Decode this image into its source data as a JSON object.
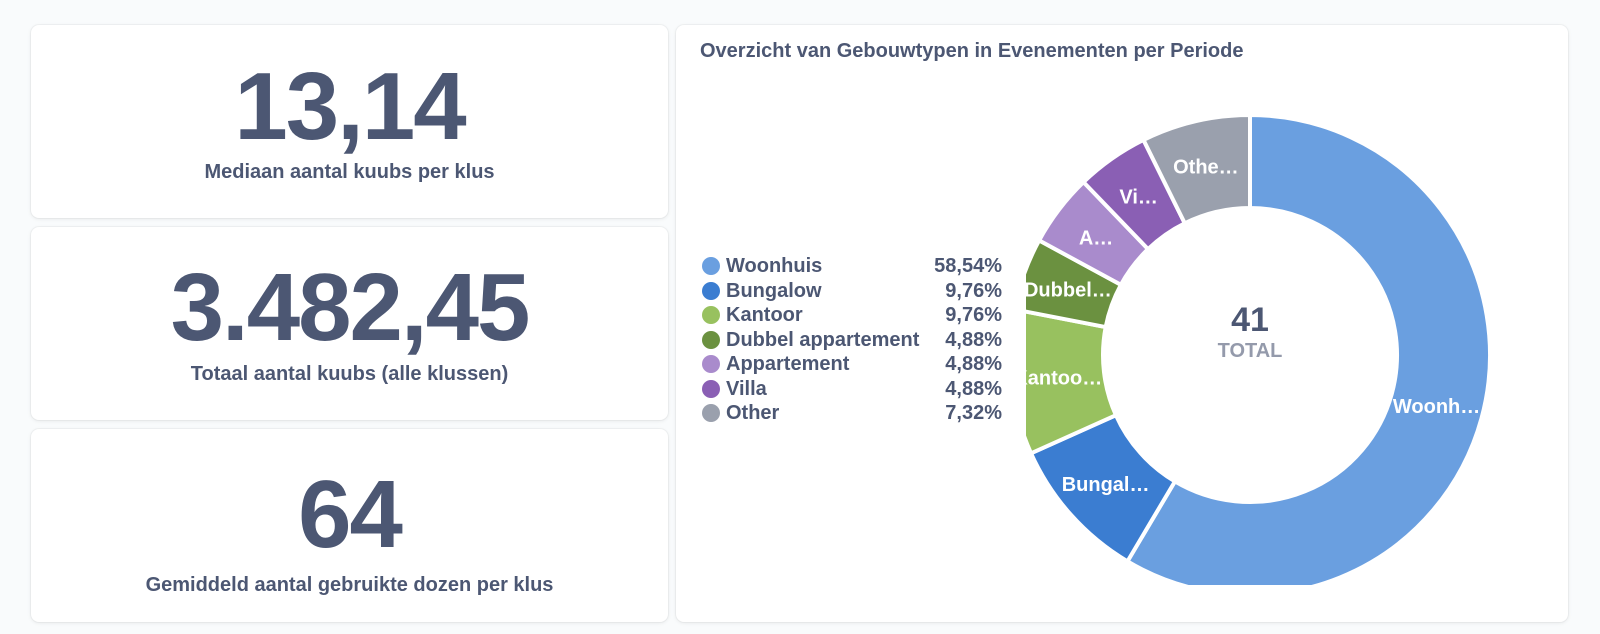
{
  "scalars": [
    {
      "value": "13,14",
      "title": "Mediaan aantal kuubs per klus"
    },
    {
      "value": "3.482,45",
      "title": "Totaal aantal kuubs (alle klussen)"
    },
    {
      "value": "64",
      "title": "Gemiddeld aantal gebruikte dozen per klus"
    }
  ],
  "chart": {
    "title": "Overzicht van Gebouwtypen in Evenementen per Periode",
    "legend": [
      {
        "label": "Woonhuis",
        "pct": "58,54%",
        "color": "#6a9fe0"
      },
      {
        "label": "Bungalow",
        "pct": "9,76%",
        "color": "#3b7dd1"
      },
      {
        "label": "Kantoor",
        "pct": "9,76%",
        "color": "#98c15f"
      },
      {
        "label": "Dubbel appartement",
        "pct": "4,88%",
        "color": "#6b9140"
      },
      {
        "label": "Appartement",
        "pct": "4,88%",
        "color": "#a98bcc"
      },
      {
        "label": "Villa",
        "pct": "4,88%",
        "color": "#8a5fb4"
      },
      {
        "label": "Other",
        "pct": "7,32%",
        "color": "#9aa0ad"
      }
    ],
    "center_value": "41",
    "center_label": "TOTAL"
  },
  "chart_data": {
    "type": "pie",
    "title": "Overzicht van Gebouwtypen in Evenementen per Periode",
    "total": 41,
    "categories": [
      "Woonhuis",
      "Bungalow",
      "Kantoor",
      "Dubbel appartement",
      "Appartement",
      "Villa",
      "Other"
    ],
    "values": [
      58.54,
      9.76,
      9.76,
      4.88,
      4.88,
      4.88,
      7.32
    ],
    "slice_labels": [
      "Woonh…",
      "Bungal…",
      "Kantoo…",
      "Dubbel…",
      "A…",
      "Vi…",
      "Othe…"
    ],
    "colors": [
      "#6a9fe0",
      "#3b7dd1",
      "#98c15f",
      "#6b9140",
      "#a98bcc",
      "#8a5fb4",
      "#9aa0ad"
    ],
    "legend_position": "left"
  }
}
